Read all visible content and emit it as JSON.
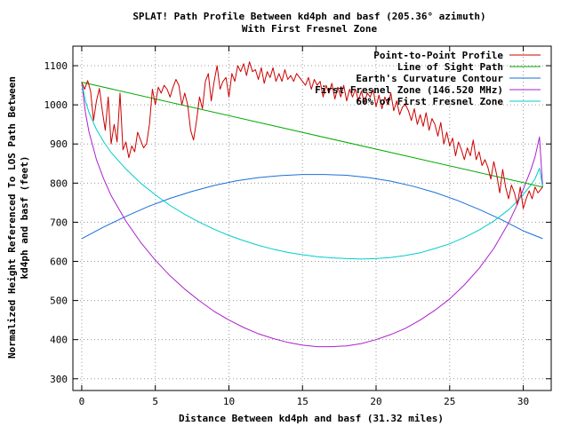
{
  "chart_data": {
    "type": "line",
    "title": [
      "SPLAT! Path Profile Between kd4ph and basf (205.36° azimuth)",
      "With First Fresnel Zone"
    ],
    "xlabel": "Distance Between kd4ph and basf (31.32 miles)",
    "ylabel": [
      "Normalized Height Referenced To LOS Path Between",
      "kd4ph and basf (feet)"
    ],
    "xlim": [
      -0.6,
      31.9
    ],
    "ylim": [
      270,
      1150
    ],
    "xticks": [
      0,
      5,
      10,
      15,
      20,
      25,
      30
    ],
    "yticks": [
      300,
      400,
      500,
      600,
      700,
      800,
      900,
      1000,
      1100
    ],
    "grid": true,
    "legend_position": "top-right",
    "series": [
      {
        "name": "Point-to-Point Profile",
        "color": "#cc0000",
        "x": [
          0,
          0.2,
          0.4,
          0.6,
          0.8,
          1.0,
          1.2,
          1.4,
          1.6,
          1.8,
          2.0,
          2.2,
          2.4,
          2.6,
          2.8,
          3.0,
          3.2,
          3.4,
          3.6,
          3.8,
          4.0,
          4.2,
          4.4,
          4.6,
          4.8,
          5.0,
          5.2,
          5.4,
          5.6,
          5.8,
          6.0,
          6.2,
          6.4,
          6.6,
          6.8,
          7.0,
          7.2,
          7.4,
          7.6,
          7.8,
          8.0,
          8.2,
          8.4,
          8.6,
          8.8,
          9.0,
          9.2,
          9.4,
          9.6,
          9.8,
          10.0,
          10.2,
          10.4,
          10.6,
          10.8,
          11.0,
          11.2,
          11.4,
          11.6,
          11.8,
          12.0,
          12.2,
          12.4,
          12.6,
          12.8,
          13.0,
          13.2,
          13.4,
          13.6,
          13.8,
          14.0,
          14.2,
          14.4,
          14.6,
          14.8,
          15.0,
          15.2,
          15.4,
          15.6,
          15.8,
          16.0,
          16.2,
          16.4,
          16.6,
          16.8,
          17.0,
          17.2,
          17.4,
          17.6,
          17.8,
          18.0,
          18.2,
          18.4,
          18.6,
          18.8,
          19.0,
          19.2,
          19.4,
          19.6,
          19.8,
          20.0,
          20.2,
          20.4,
          20.6,
          20.8,
          21.0,
          21.2,
          21.4,
          21.6,
          21.8,
          22.0,
          22.2,
          22.4,
          22.6,
          22.8,
          23.0,
          23.2,
          23.4,
          23.6,
          23.8,
          24.0,
          24.2,
          24.4,
          24.6,
          24.8,
          25.0,
          25.2,
          25.4,
          25.6,
          25.8,
          26.0,
          26.2,
          26.4,
          26.6,
          26.8,
          27.0,
          27.2,
          27.4,
          27.6,
          27.8,
          28.0,
          28.2,
          28.4,
          28.6,
          28.8,
          29.0,
          29.2,
          29.4,
          29.6,
          29.8,
          30.0,
          30.2,
          30.4,
          30.6,
          30.8,
          31.0,
          31.32
        ],
        "y": [
          1058,
          1040,
          1062,
          1035,
          960,
          1010,
          1042,
          985,
          935,
          1020,
          900,
          950,
          905,
          1030,
          885,
          905,
          865,
          895,
          880,
          930,
          910,
          890,
          900,
          950,
          1040,
          1000,
          1045,
          1030,
          1050,
          1040,
          1020,
          1045,
          1065,
          1050,
          1000,
          1030,
          1000,
          935,
          910,
          960,
          1020,
          990,
          1060,
          1080,
          1010,
          1060,
          1100,
          1040,
          1060,
          1070,
          1020,
          1080,
          1060,
          1100,
          1085,
          1105,
          1075,
          1110,
          1085,
          1090,
          1065,
          1095,
          1055,
          1085,
          1070,
          1095,
          1060,
          1080,
          1060,
          1090,
          1065,
          1075,
          1060,
          1080,
          1070,
          1060,
          1050,
          1070,
          1040,
          1065,
          1050,
          1060,
          1020,
          1050,
          1030,
          1055,
          1015,
          1045,
          1020,
          1050,
          1010,
          1040,
          1020,
          1040,
          1010,
          1035,
          1005,
          1030,
          1020,
          1040,
          995,
          1025,
          990,
          1020,
          1000,
          1030,
          985,
          1010,
          975,
          995,
          1000,
          985,
          960,
          990,
          950,
          975,
          945,
          980,
          935,
          965,
          950,
          920,
          955,
          900,
          930,
          895,
          915,
          870,
          905,
          885,
          860,
          890,
          870,
          910,
          860,
          880,
          845,
          860,
          840,
          810,
          855,
          820,
          775,
          835,
          790,
          760,
          795,
          775,
          745,
          790,
          735,
          760,
          780,
          760,
          790,
          775,
          790
        ]
      },
      {
        "name": "Line of Sight Path",
        "color": "#00aa00",
        "x": [
          0,
          31.32
        ],
        "y": [
          1058,
          790
        ]
      },
      {
        "name": "Earth's Curvature Contour",
        "color": "#1a6fd6",
        "x": [
          0,
          1.5,
          3,
          4.5,
          6,
          7.5,
          9,
          10.5,
          12,
          13.5,
          15,
          15.66,
          16.5,
          18,
          19.5,
          21,
          22.5,
          24,
          25.5,
          27,
          28.5,
          30,
          31.32
        ],
        "y": [
          658,
          688,
          715,
          740,
          761,
          779,
          794,
          806,
          814,
          819,
          822,
          822,
          822,
          820,
          814,
          805,
          792,
          776,
          756,
          733,
          707,
          678,
          658
        ]
      },
      {
        "name": "First Fresnel Zone (146.520 MHz)",
        "color": "#aa22cc",
        "x": [
          0,
          0.25,
          0.5,
          1,
          1.5,
          2,
          3,
          4,
          5,
          6,
          7,
          8,
          9,
          10,
          11,
          12,
          13,
          14,
          15,
          16,
          17,
          18,
          19,
          20,
          21,
          22,
          23,
          24,
          25,
          26,
          27,
          28,
          29,
          29.5,
          30,
          30.5,
          30.8,
          31.1,
          31.32
        ],
        "y": [
          1058,
          980,
          930,
          860,
          810,
          768,
          703,
          649,
          603,
          563,
          529,
          499,
          472,
          450,
          431,
          415,
          403,
          393,
          386,
          382,
          382,
          384,
          390,
          400,
          413,
          429,
          450,
          475,
          504,
          540,
          582,
          633,
          698,
          738,
          784,
          832,
          867,
          918,
          790
        ]
      },
      {
        "name": "60% of First Fresnel Zone",
        "color": "#00cccc",
        "x": [
          0,
          0.25,
          0.5,
          1,
          1.5,
          2,
          3,
          4,
          5,
          6,
          7,
          8,
          9,
          10,
          11,
          12,
          13,
          14,
          15,
          16,
          17,
          18,
          19,
          20,
          21,
          22,
          23,
          24,
          25,
          26,
          27,
          28,
          29,
          29.5,
          30,
          30.5,
          30.8,
          31.1,
          31.32
        ],
        "y": [
          1058,
          1010,
          980,
          937,
          905,
          878,
          836,
          800,
          770,
          743,
          720,
          700,
          682,
          666,
          653,
          641,
          631,
          623,
          617,
          612,
          609,
          607,
          606,
          607,
          610,
          615,
          622,
          633,
          645,
          661,
          680,
          703,
          732,
          750,
          771,
          794,
          811,
          838,
          790
        ]
      }
    ]
  }
}
